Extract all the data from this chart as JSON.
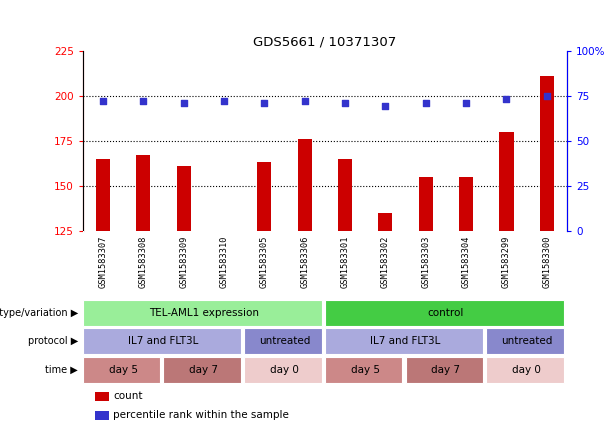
{
  "title": "GDS5661 / 10371307",
  "samples": [
    "GSM1583307",
    "GSM1583308",
    "GSM1583309",
    "GSM1583310",
    "GSM1583305",
    "GSM1583306",
    "GSM1583301",
    "GSM1583302",
    "GSM1583303",
    "GSM1583304",
    "GSM1583299",
    "GSM1583300"
  ],
  "counts": [
    165,
    167,
    161,
    125,
    163,
    176,
    165,
    135,
    155,
    155,
    180,
    211
  ],
  "percentiles": [
    72,
    72,
    71,
    72,
    71,
    72,
    71,
    69,
    71,
    71,
    73,
    75
  ],
  "ylim_left": [
    125,
    225
  ],
  "ylim_right": [
    0,
    100
  ],
  "yticks_left": [
    125,
    150,
    175,
    200,
    225
  ],
  "yticks_right": [
    0,
    25,
    50,
    75,
    100
  ],
  "bar_color": "#cc0000",
  "dot_color": "#3333cc",
  "bg_color": "#ffffff",
  "sample_bg_color": "#cccccc",
  "genotype_row": {
    "label": "genotype/variation",
    "segments": [
      {
        "text": "TEL-AML1 expression",
        "span": 6,
        "color": "#99ee99"
      },
      {
        "text": "control",
        "span": 6,
        "color": "#44cc44"
      }
    ]
  },
  "protocol_row": {
    "label": "protocol",
    "segments": [
      {
        "text": "IL7 and FLT3L",
        "span": 4,
        "color": "#aaaadd"
      },
      {
        "text": "untreated",
        "span": 2,
        "color": "#8888cc"
      },
      {
        "text": "IL7 and FLT3L",
        "span": 4,
        "color": "#aaaadd"
      },
      {
        "text": "untreated",
        "span": 2,
        "color": "#8888cc"
      }
    ]
  },
  "time_row": {
    "label": "time",
    "segments": [
      {
        "text": "day 5",
        "span": 2,
        "color": "#cc8888"
      },
      {
        "text": "day 7",
        "span": 2,
        "color": "#bb7777"
      },
      {
        "text": "day 0",
        "span": 2,
        "color": "#eecccc"
      },
      {
        "text": "day 5",
        "span": 2,
        "color": "#cc8888"
      },
      {
        "text": "day 7",
        "span": 2,
        "color": "#bb7777"
      },
      {
        "text": "day 0",
        "span": 2,
        "color": "#eecccc"
      }
    ]
  },
  "legend_items": [
    {
      "label": "count",
      "color": "#cc0000"
    },
    {
      "label": "percentile rank within the sample",
      "color": "#3333cc"
    }
  ]
}
